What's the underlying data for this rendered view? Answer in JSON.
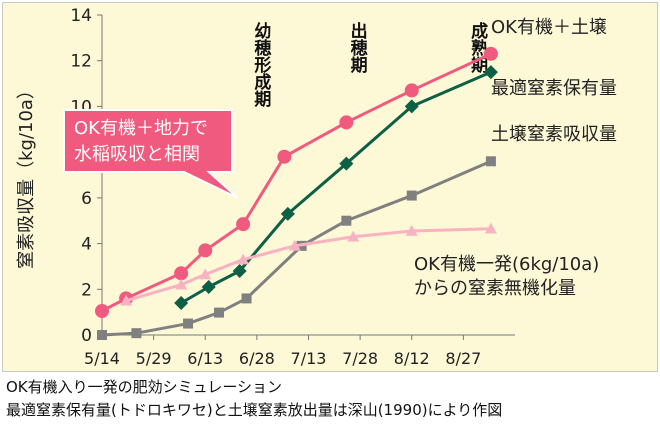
{
  "chart_data": {
    "type": "line",
    "ylabel": "窒素吸収量（kg/10a）",
    "ylim": [
      0,
      14
    ],
    "yticks": [
      0,
      2,
      4,
      6,
      8,
      10,
      12,
      14
    ],
    "xticks": [
      "5/14",
      "5/29",
      "6/13",
      "6/28",
      "7/13",
      "7/28",
      "8/12",
      "8/27"
    ],
    "xlim": [
      "5/14",
      "9/11"
    ],
    "grid": false,
    "series": [
      {
        "name": "OK有機＋土壌",
        "color": "#f05a7e",
        "marker": "circle",
        "points": [
          {
            "x": "5/14",
            "y": 1.05
          },
          {
            "x": "5/21",
            "y": 1.6
          },
          {
            "x": "6/6",
            "y": 2.7
          },
          {
            "x": "6/13",
            "y": 3.7
          },
          {
            "x": "6/24",
            "y": 4.85
          },
          {
            "x": "7/6",
            "y": 7.8
          },
          {
            "x": "7/24",
            "y": 9.3
          },
          {
            "x": "8/12",
            "y": 10.7
          },
          {
            "x": "9/4",
            "y": 12.3
          }
        ]
      },
      {
        "name": "最適窒素保有量",
        "color": "#0d5f46",
        "marker": "diamond",
        "points": [
          {
            "x": "6/6",
            "y": 1.4
          },
          {
            "x": "6/14",
            "y": 2.1
          },
          {
            "x": "6/23",
            "y": 2.8
          },
          {
            "x": "7/7",
            "y": 5.3
          },
          {
            "x": "7/24",
            "y": 7.5
          },
          {
            "x": "8/12",
            "y": 10.0
          },
          {
            "x": "9/4",
            "y": 11.5
          }
        ]
      },
      {
        "name": "土壌窒素吸収量",
        "color": "#808080",
        "marker": "square",
        "points": [
          {
            "x": "5/14",
            "y": 0.0
          },
          {
            "x": "5/24",
            "y": 0.08
          },
          {
            "x": "6/8",
            "y": 0.5
          },
          {
            "x": "6/17",
            "y": 0.98
          },
          {
            "x": "6/25",
            "y": 1.6
          },
          {
            "x": "7/11",
            "y": 3.9
          },
          {
            "x": "7/24",
            "y": 5.0
          },
          {
            "x": "8/12",
            "y": 6.1
          },
          {
            "x": "9/4",
            "y": 7.6
          }
        ]
      },
      {
        "name": "OK有機一発(6kg/10a)からの窒素無機化量",
        "color": "#f9b2c2",
        "marker": "triangle",
        "points": [
          {
            "x": "5/21",
            "y": 1.5
          },
          {
            "x": "6/6",
            "y": 2.2
          },
          {
            "x": "6/13",
            "y": 2.65
          },
          {
            "x": "6/24",
            "y": 3.3
          },
          {
            "x": "7/9",
            "y": 3.9
          },
          {
            "x": "7/26",
            "y": 4.3
          },
          {
            "x": "8/12",
            "y": 4.55
          },
          {
            "x": "9/4",
            "y": 4.65
          }
        ]
      }
    ],
    "series_labels": [
      {
        "lines": [
          "OK有機＋土壌"
        ]
      },
      {
        "lines": [
          "最適窒素保有量"
        ]
      },
      {
        "lines": [
          "土壌窒素吸収量"
        ]
      },
      {
        "lines": [
          "OK有機一発(6kg/10a)",
          "からの窒素無機化量"
        ]
      }
    ],
    "stage_labels": [
      {
        "text": "幼穂形成期",
        "x": "6/29"
      },
      {
        "text": "出穂期",
        "x": "7/27"
      },
      {
        "text": "成熟期",
        "x": "8/31"
      }
    ],
    "callout": {
      "lines": [
        "OK有機＋地力で",
        "水稲吸収と相関"
      ],
      "fill": "#f05a7e",
      "text_color": "#ffffff"
    }
  },
  "caption": {
    "line1": "OK有機入り一発の肥効シミュレーション",
    "line2": "最適窒素保有量(トドロキワセ)と土壌窒素放出量は深山(1990)により作図"
  }
}
